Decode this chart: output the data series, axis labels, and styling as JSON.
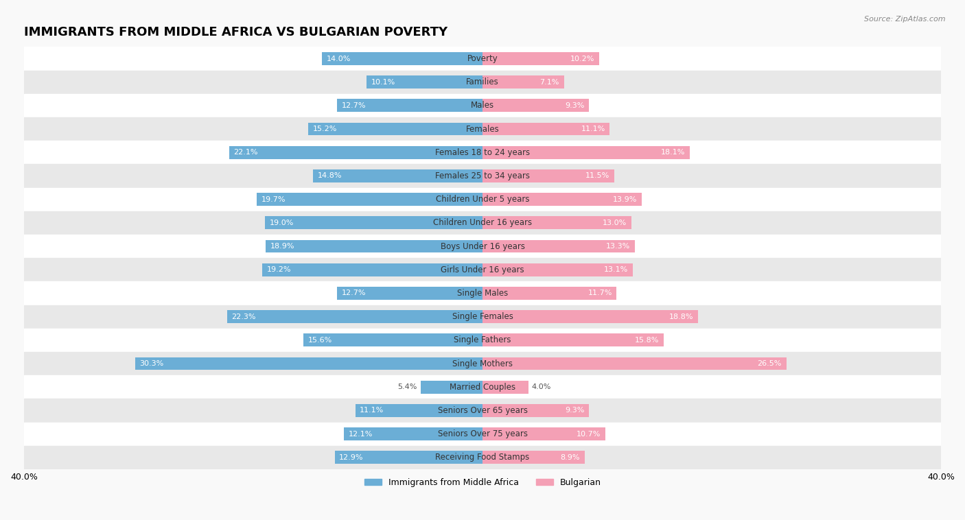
{
  "title": "IMMIGRANTS FROM MIDDLE AFRICA VS BULGARIAN POVERTY",
  "source": "Source: ZipAtlas.com",
  "categories": [
    "Poverty",
    "Families",
    "Males",
    "Females",
    "Females 18 to 24 years",
    "Females 25 to 34 years",
    "Children Under 5 years",
    "Children Under 16 years",
    "Boys Under 16 years",
    "Girls Under 16 years",
    "Single Males",
    "Single Females",
    "Single Fathers",
    "Single Mothers",
    "Married Couples",
    "Seniors Over 65 years",
    "Seniors Over 75 years",
    "Receiving Food Stamps"
  ],
  "left_values": [
    14.0,
    10.1,
    12.7,
    15.2,
    22.1,
    14.8,
    19.7,
    19.0,
    18.9,
    19.2,
    12.7,
    22.3,
    15.6,
    30.3,
    5.4,
    11.1,
    12.1,
    12.9
  ],
  "right_values": [
    10.2,
    7.1,
    9.3,
    11.1,
    18.1,
    11.5,
    13.9,
    13.0,
    13.3,
    13.1,
    11.7,
    18.8,
    15.8,
    26.5,
    4.0,
    9.3,
    10.7,
    8.9
  ],
  "left_color": "#6baed6",
  "right_color": "#f4a0b5",
  "label_left": "Immigrants from Middle Africa",
  "label_right": "Bulgarian",
  "xlim": 40.0,
  "bar_height": 0.55,
  "background_color": "#f9f9f9",
  "row_color_even": "#ffffff",
  "row_color_odd": "#e8e8e8",
  "text_color_inside": "#ffffff",
  "text_color_outside": "#555555",
  "title_fontsize": 13,
  "label_fontsize": 8.5,
  "value_fontsize": 8,
  "legend_fontsize": 9,
  "source_fontsize": 8
}
